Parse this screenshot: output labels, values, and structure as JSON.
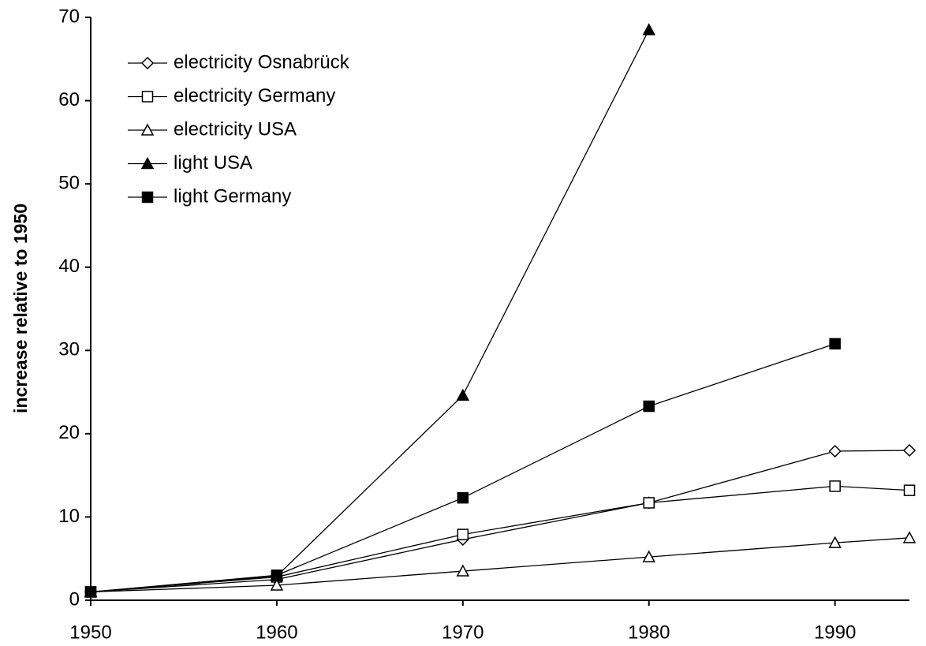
{
  "chart_data": {
    "type": "line",
    "y_label": "increase relative to 1950",
    "x": [
      1950,
      1960,
      1970,
      1980,
      1990,
      1994
    ],
    "xlim": [
      1950,
      1994
    ],
    "xticks": [
      1950,
      1960,
      1970,
      1980,
      1990
    ],
    "ylim": [
      0,
      70
    ],
    "yticks": [
      0,
      10,
      20,
      30,
      40,
      50,
      60,
      70
    ],
    "legend": "upper left",
    "series": [
      {
        "name": "electricity Osnabrück",
        "color": "#000000",
        "marker": "diamond",
        "filled": false,
        "values": [
          1,
          2.5,
          7.3,
          11.7,
          17.9,
          18.0
        ]
      },
      {
        "name": "electricity Germany",
        "color": "#000000",
        "marker": "square",
        "filled": false,
        "values": [
          1,
          2.8,
          7.9,
          11.7,
          13.7,
          13.2
        ]
      },
      {
        "name": "electricity USA",
        "color": "#000000",
        "marker": "triangle",
        "filled": false,
        "values": [
          1,
          1.8,
          3.5,
          5.2,
          6.9,
          7.5
        ]
      },
      {
        "name": "light USA",
        "color": "#000000",
        "marker": "triangle",
        "filled": true,
        "values": [
          1,
          2.9,
          24.6,
          68.5,
          null,
          null
        ]
      },
      {
        "name": "light Germany",
        "color": "#000000",
        "marker": "square",
        "filled": true,
        "values": [
          1,
          3.0,
          12.3,
          23.3,
          30.8,
          null
        ]
      }
    ]
  }
}
